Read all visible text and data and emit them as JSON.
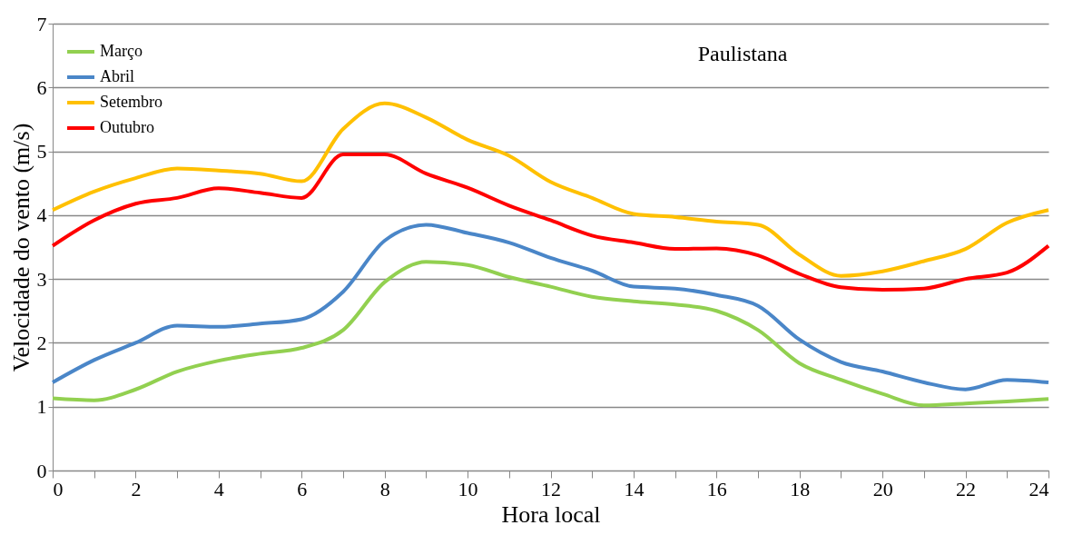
{
  "chart_data": {
    "type": "line",
    "title": "Paulistana",
    "xlabel": "Hora local",
    "ylabel": "Velocidade do vento (m/s)",
    "x": [
      0,
      1,
      2,
      3,
      4,
      5,
      6,
      7,
      8,
      9,
      10,
      11,
      12,
      13,
      14,
      15,
      16,
      17,
      18,
      19,
      20,
      21,
      22,
      23,
      24
    ],
    "series": [
      {
        "name": "Março",
        "color": "#92d050",
        "values": [
          1.13,
          1.1,
          1.27,
          1.55,
          1.72,
          1.83,
          1.92,
          2.2,
          2.95,
          3.27,
          3.22,
          3.03,
          2.88,
          2.72,
          2.65,
          2.6,
          2.5,
          2.2,
          1.68,
          1.42,
          1.2,
          1.02,
          1.05,
          1.08,
          1.12
        ]
      },
      {
        "name": "Abril",
        "color": "#4a86c8",
        "values": [
          1.38,
          1.73,
          2.0,
          2.27,
          2.25,
          2.3,
          2.37,
          2.8,
          3.6,
          3.85,
          3.72,
          3.57,
          3.33,
          3.13,
          2.88,
          2.85,
          2.75,
          2.58,
          2.05,
          1.7,
          1.55,
          1.38,
          1.27,
          1.42,
          1.38
        ]
      },
      {
        "name": "Setembro",
        "color": "#ffc000",
        "values": [
          4.08,
          4.37,
          4.58,
          4.73,
          4.7,
          4.65,
          4.53,
          5.35,
          5.75,
          5.53,
          5.18,
          4.93,
          4.52,
          4.27,
          4.02,
          3.97,
          3.9,
          3.85,
          3.38,
          3.05,
          3.12,
          3.28,
          3.47,
          3.88,
          4.08
        ]
      },
      {
        "name": "Outubro",
        "color": "#ff0000",
        "values": [
          3.52,
          3.92,
          4.18,
          4.27,
          4.42,
          4.35,
          4.27,
          4.95,
          4.95,
          4.65,
          4.43,
          4.15,
          3.92,
          3.68,
          3.57,
          3.47,
          3.48,
          3.37,
          3.08,
          2.87,
          2.83,
          2.85,
          3.0,
          3.1,
          3.52
        ]
      }
    ],
    "xlim": [
      0,
      24
    ],
    "xticks": [
      0,
      {
        "value": 1,
        "label": null
      },
      2,
      {
        "value": 3,
        "label": null
      },
      4,
      {
        "value": 5,
        "label": null
      },
      6,
      {
        "value": 7,
        "label": null
      },
      8,
      {
        "value": 9,
        "label": null
      },
      10,
      {
        "value": 11,
        "label": null
      },
      12,
      {
        "value": 13,
        "label": null
      },
      14,
      {
        "value": 15,
        "label": null
      },
      16,
      {
        "value": 17,
        "label": null
      },
      18,
      {
        "value": 19,
        "label": null
      },
      20,
      {
        "value": 21,
        "label": null
      },
      22,
      {
        "value": 23,
        "label": null
      },
      24
    ],
    "ylim": [
      0,
      7
    ],
    "yticks": [
      0,
      1,
      2,
      3,
      4,
      5,
      6,
      7
    ],
    "grid": "y",
    "legend": "top left",
    "marker": "none",
    "line_style": "solid"
  }
}
